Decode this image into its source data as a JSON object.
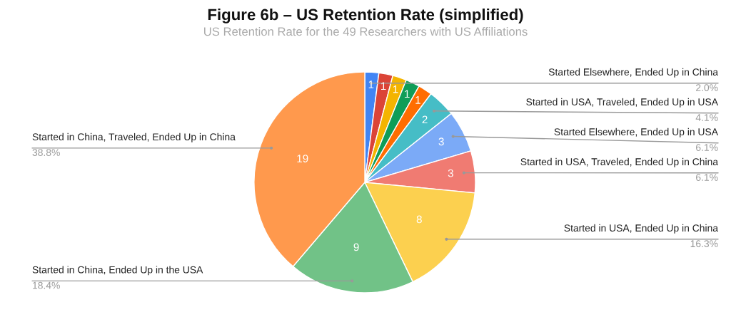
{
  "chart_data": {
    "type": "pie",
    "title": "Figure 6b – US Retention Rate (simplified)",
    "subtitle": "US Retention Rate for the 49 Researchers with US Affiliations",
    "categories": [
      "Started Elsewhere, Ended Up in China",
      null,
      null,
      null,
      null,
      "Started in USA, Traveled, Ended Up in USA",
      "Started Elsewhere, Ended Up in USA",
      "Started in USA, Traveled, Ended Up in China",
      "Started in USA, Ended Up in China",
      "Started in China, Ended Up in the USA",
      "Started in China, Traveled, Ended Up in China"
    ],
    "values": [
      1,
      1,
      1,
      1,
      1,
      2,
      3,
      3,
      8,
      9,
      19
    ],
    "value_labels": [
      "1",
      "1",
      "1",
      "1",
      "1",
      "2",
      "3",
      "3",
      "8",
      "9",
      "19"
    ],
    "annotations": [
      "2.0%",
      "4.1%",
      "6.1%",
      "6.1%",
      "16.3%",
      "18.4%",
      "38.8%"
    ],
    "colors": [
      "#4285f4",
      "#db4437",
      "#f4b400",
      "#0f9d58",
      "#ff6d01",
      "#46bdc6",
      "#7baaf7",
      "#f07b72",
      "#fcd04f",
      "#71c287",
      "#ff994d"
    ],
    "legend": false
  }
}
